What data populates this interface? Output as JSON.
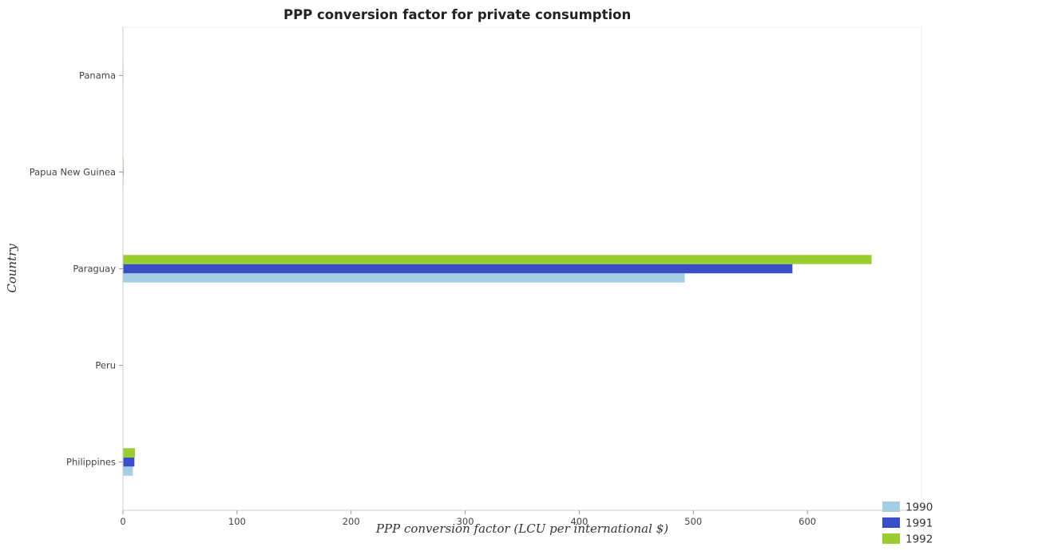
{
  "chart_data": {
    "type": "bar",
    "orientation": "horizontal",
    "title": "PPP conversion factor for private consumption",
    "xlabel": "PPP conversion factor (LCU per international $)",
    "ylabel": "Country",
    "categories": [
      "Panama",
      "Papua New Guinea",
      "Paraguay",
      "Peru",
      "Philippines"
    ],
    "series": [
      {
        "name": "1990",
        "color": "#a6cee3",
        "values": [
          0.42,
          0.55,
          492.5,
          0.0007,
          8.7
        ]
      },
      {
        "name": "1991",
        "color": "#3a4ec5",
        "values": [
          0.42,
          0.56,
          586.9,
          0.13,
          10.0
        ]
      },
      {
        "name": "1992",
        "color": "#9acd32",
        "values": [
          0.42,
          0.58,
          656.3,
          0.27,
          10.5
        ]
      }
    ],
    "xlim": [
      0,
      700
    ],
    "xticks": [
      0,
      100,
      200,
      300,
      400,
      500,
      600
    ],
    "grid": false,
    "legend_position": "bottom-right"
  }
}
